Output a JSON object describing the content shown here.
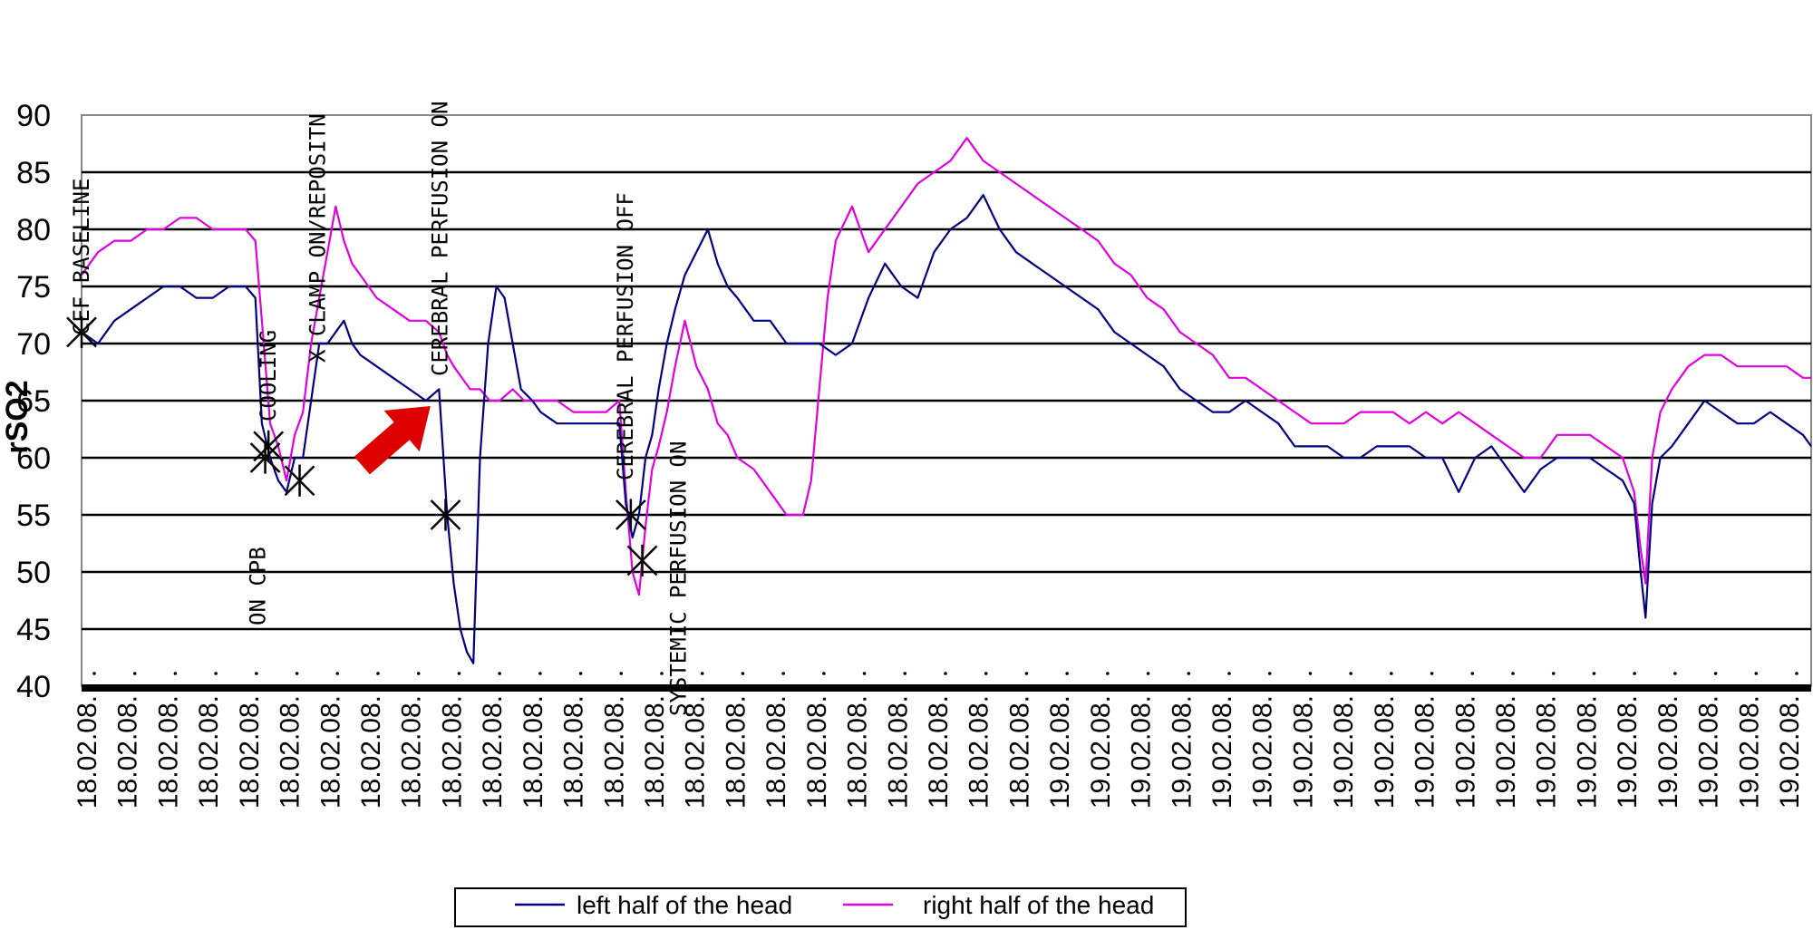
{
  "chart_data": {
    "type": "line",
    "title": "",
    "xlabel": "",
    "ylabel": "rSO2",
    "ylim": [
      40,
      90
    ],
    "yticks": [
      40,
      45,
      50,
      55,
      60,
      65,
      70,
      75,
      80,
      85,
      90
    ],
    "grid": "horizontal",
    "legend_position": "bottom",
    "x_tick_labels": [
      "18.02.08.",
      "18.02.08.",
      "18.02.08.",
      "18.02.08.",
      "18.02.08.",
      "18.02.08.",
      "18.02.08.",
      "18.02.08.",
      "18.02.08.",
      "18.02.08.",
      "18.02.08.",
      "18.02.08.",
      "18.02.08.",
      "18.02.08.",
      "18.02.08.",
      "18.02.08.",
      "18.02.08.",
      "18.02.08.",
      "18.02.08.",
      "18.02.08.",
      "18.02.08.",
      "18.02.08.",
      "18.02.08.",
      "18.02.08.",
      "19.02.08.",
      "19.02.08.",
      "19.02.08.",
      "19.02.08.",
      "19.02.08.",
      "19.02.08.",
      "19.02.08.",
      "19.02.08.",
      "19.02.08.",
      "19.02.08.",
      "19.02.08.",
      "19.02.08.",
      "19.02.08.",
      "19.02.08.",
      "19.02.08.",
      "19.02.08.",
      "19.02.08.",
      "19.02.08.",
      "19.02.08."
    ],
    "series": [
      {
        "name": "left half of the head",
        "color": "#000080",
        "points": [
          [
            0,
            71
          ],
          [
            1,
            70
          ],
          [
            2,
            72
          ],
          [
            3,
            73
          ],
          [
            4,
            74
          ],
          [
            5,
            75
          ],
          [
            6,
            75
          ],
          [
            7,
            74
          ],
          [
            8,
            74
          ],
          [
            9,
            75
          ],
          [
            10,
            75
          ],
          [
            10.6,
            74
          ],
          [
            11,
            63
          ],
          [
            11.5,
            60
          ],
          [
            12,
            58
          ],
          [
            12.5,
            57
          ],
          [
            13,
            60
          ],
          [
            13.5,
            60
          ],
          [
            14,
            65
          ],
          [
            14.5,
            70
          ],
          [
            15,
            70
          ],
          [
            15.5,
            71
          ],
          [
            16,
            72
          ],
          [
            16.5,
            70
          ],
          [
            17,
            69
          ],
          [
            18,
            68
          ],
          [
            19,
            67
          ],
          [
            20,
            66
          ],
          [
            21,
            65
          ],
          [
            21.8,
            66
          ],
          [
            22.3,
            55
          ],
          [
            22.7,
            49
          ],
          [
            23.1,
            45
          ],
          [
            23.5,
            43
          ],
          [
            23.9,
            42
          ],
          [
            24.3,
            60
          ],
          [
            24.8,
            70
          ],
          [
            25.3,
            75
          ],
          [
            25.8,
            74
          ],
          [
            26.3,
            70
          ],
          [
            26.8,
            66
          ],
          [
            27.5,
            65
          ],
          [
            28,
            64
          ],
          [
            29,
            63
          ],
          [
            30,
            63
          ],
          [
            31,
            63
          ],
          [
            32,
            63
          ],
          [
            32.8,
            63
          ],
          [
            33.2,
            56
          ],
          [
            33.6,
            53
          ],
          [
            34,
            55
          ],
          [
            34.4,
            60
          ],
          [
            34.8,
            62
          ],
          [
            35.2,
            66
          ],
          [
            35.7,
            70
          ],
          [
            36.2,
            73
          ],
          [
            36.8,
            76
          ],
          [
            37.5,
            78
          ],
          [
            38.2,
            80
          ],
          [
            38.8,
            77
          ],
          [
            39.4,
            75
          ],
          [
            40,
            74
          ],
          [
            41,
            72
          ],
          [
            42,
            72
          ],
          [
            43,
            70
          ],
          [
            44,
            70
          ],
          [
            45,
            70
          ],
          [
            46,
            69
          ],
          [
            47,
            70
          ],
          [
            48,
            74
          ],
          [
            49,
            77
          ],
          [
            50,
            75
          ],
          [
            51,
            74
          ],
          [
            52,
            78
          ],
          [
            53,
            80
          ],
          [
            54,
            81
          ],
          [
            55,
            83
          ],
          [
            56,
            80
          ],
          [
            57,
            78
          ],
          [
            58,
            77
          ],
          [
            59,
            76
          ],
          [
            60,
            75
          ],
          [
            61,
            74
          ],
          [
            62,
            73
          ],
          [
            63,
            71
          ],
          [
            64,
            70
          ],
          [
            65,
            69
          ],
          [
            66,
            68
          ],
          [
            67,
            66
          ],
          [
            68,
            65
          ],
          [
            69,
            64
          ],
          [
            70,
            64
          ],
          [
            71,
            65
          ],
          [
            72,
            64
          ],
          [
            73,
            63
          ],
          [
            74,
            61
          ],
          [
            75,
            61
          ],
          [
            76,
            61
          ],
          [
            77,
            60
          ],
          [
            78,
            60
          ],
          [
            79,
            61
          ],
          [
            80,
            61
          ],
          [
            81,
            61
          ],
          [
            82,
            60
          ],
          [
            83,
            60
          ],
          [
            84,
            57
          ],
          [
            85,
            60
          ],
          [
            86,
            61
          ],
          [
            87,
            59
          ],
          [
            88,
            57
          ],
          [
            89,
            59
          ],
          [
            90,
            60
          ],
          [
            91,
            60
          ],
          [
            92,
            60
          ],
          [
            93,
            59
          ],
          [
            94,
            58
          ],
          [
            94.7,
            56
          ],
          [
            95.1,
            50
          ],
          [
            95.4,
            46
          ],
          [
            95.8,
            56
          ],
          [
            96.3,
            60
          ],
          [
            97,
            61
          ],
          [
            98,
            63
          ],
          [
            99,
            65
          ],
          [
            100,
            64
          ],
          [
            101,
            63
          ],
          [
            102,
            63
          ],
          [
            103,
            64
          ],
          [
            104,
            63
          ],
          [
            105,
            62
          ],
          [
            105.5,
            61
          ]
        ]
      },
      {
        "name": "right half of the head",
        "color": "#e000e0",
        "points": [
          [
            0,
            76
          ],
          [
            1,
            78
          ],
          [
            2,
            79
          ],
          [
            3,
            79
          ],
          [
            4,
            80
          ],
          [
            5,
            80
          ],
          [
            6,
            81
          ],
          [
            7,
            81
          ],
          [
            8,
            80
          ],
          [
            9,
            80
          ],
          [
            10,
            80
          ],
          [
            10.6,
            79
          ],
          [
            11,
            72
          ],
          [
            11.5,
            63
          ],
          [
            12,
            61
          ],
          [
            12.5,
            58
          ],
          [
            13,
            62
          ],
          [
            13.5,
            64
          ],
          [
            14,
            70
          ],
          [
            14.5,
            74
          ],
          [
            15,
            78
          ],
          [
            15.5,
            82
          ],
          [
            16,
            79
          ],
          [
            16.5,
            77
          ],
          [
            17,
            76
          ],
          [
            18,
            74
          ],
          [
            19,
            73
          ],
          [
            20,
            72
          ],
          [
            21,
            72
          ],
          [
            21.8,
            71
          ],
          [
            22.3,
            69
          ],
          [
            22.7,
            68
          ],
          [
            23.2,
            67
          ],
          [
            23.7,
            66
          ],
          [
            24.3,
            66
          ],
          [
            24.9,
            65
          ],
          [
            25.5,
            65
          ],
          [
            26.3,
            66
          ],
          [
            27,
            65
          ],
          [
            28,
            65
          ],
          [
            29,
            65
          ],
          [
            30,
            64
          ],
          [
            31,
            64
          ],
          [
            32,
            64
          ],
          [
            32.8,
            65
          ],
          [
            33.2,
            57
          ],
          [
            33.6,
            50
          ],
          [
            34,
            48
          ],
          [
            34.4,
            54
          ],
          [
            34.8,
            59
          ],
          [
            35.2,
            61
          ],
          [
            35.7,
            64
          ],
          [
            36.2,
            68
          ],
          [
            36.8,
            72
          ],
          [
            37.5,
            68
          ],
          [
            38.2,
            66
          ],
          [
            38.8,
            63
          ],
          [
            39.4,
            62
          ],
          [
            40,
            60
          ],
          [
            41,
            59
          ],
          [
            42,
            57
          ],
          [
            43,
            55
          ],
          [
            44,
            55
          ],
          [
            44.5,
            58
          ],
          [
            45,
            66
          ],
          [
            45.5,
            74
          ],
          [
            46,
            79
          ],
          [
            47,
            82
          ],
          [
            48,
            78
          ],
          [
            49,
            80
          ],
          [
            50,
            82
          ],
          [
            51,
            84
          ],
          [
            52,
            85
          ],
          [
            53,
            86
          ],
          [
            54,
            88
          ],
          [
            55,
            86
          ],
          [
            56,
            85
          ],
          [
            57,
            84
          ],
          [
            58,
            83
          ],
          [
            59,
            82
          ],
          [
            60,
            81
          ],
          [
            61,
            80
          ],
          [
            62,
            79
          ],
          [
            63,
            77
          ],
          [
            64,
            76
          ],
          [
            65,
            74
          ],
          [
            66,
            73
          ],
          [
            67,
            71
          ],
          [
            68,
            70
          ],
          [
            69,
            69
          ],
          [
            70,
            67
          ],
          [
            71,
            67
          ],
          [
            72,
            66
          ],
          [
            73,
            65
          ],
          [
            74,
            64
          ],
          [
            75,
            63
          ],
          [
            76,
            63
          ],
          [
            77,
            63
          ],
          [
            78,
            64
          ],
          [
            79,
            64
          ],
          [
            80,
            64
          ],
          [
            81,
            63
          ],
          [
            82,
            64
          ],
          [
            83,
            63
          ],
          [
            84,
            64
          ],
          [
            85,
            63
          ],
          [
            86,
            62
          ],
          [
            87,
            61
          ],
          [
            88,
            60
          ],
          [
            89,
            60
          ],
          [
            90,
            62
          ],
          [
            91,
            62
          ],
          [
            92,
            62
          ],
          [
            93,
            61
          ],
          [
            94,
            60
          ],
          [
            94.7,
            57
          ],
          [
            95.1,
            52
          ],
          [
            95.4,
            49
          ],
          [
            95.8,
            60
          ],
          [
            96.3,
            64
          ],
          [
            97,
            66
          ],
          [
            98,
            68
          ],
          [
            99,
            69
          ],
          [
            100,
            69
          ],
          [
            101,
            68
          ],
          [
            102,
            68
          ],
          [
            103,
            68
          ],
          [
            104,
            68
          ],
          [
            105,
            67
          ],
          [
            105.5,
            67
          ]
        ]
      }
    ],
    "event_markers": [
      {
        "label": "CEF BASELINE",
        "x": 0,
        "y": 71
      },
      {
        "label": "ON CPB",
        "x": 11.2,
        "y": 60
      },
      {
        "label": "COOLING",
        "x": 11.4,
        "y": 61
      },
      {
        "label": "X CLAMP ON/REPOSITN",
        "x": 13.3,
        "y": 58
      },
      {
        "label": "CEREBRAL PERFUSION ON",
        "x": 22.2,
        "y": 55
      },
      {
        "label": "CEREBRAL PERFUSION OFF",
        "x": 33.5,
        "y": 55
      },
      {
        "label": "SYSTEMIC PERFUSION ON",
        "x": 34.2,
        "y": 51
      }
    ],
    "annotation_arrow": {
      "color": "#dd0000",
      "points_to": [
        21.5,
        65
      ]
    }
  },
  "legend": {
    "items": [
      {
        "label": "left half of the head",
        "color": "#000080"
      },
      {
        "label": "right half of the head",
        "color": "#e000e0"
      }
    ]
  }
}
